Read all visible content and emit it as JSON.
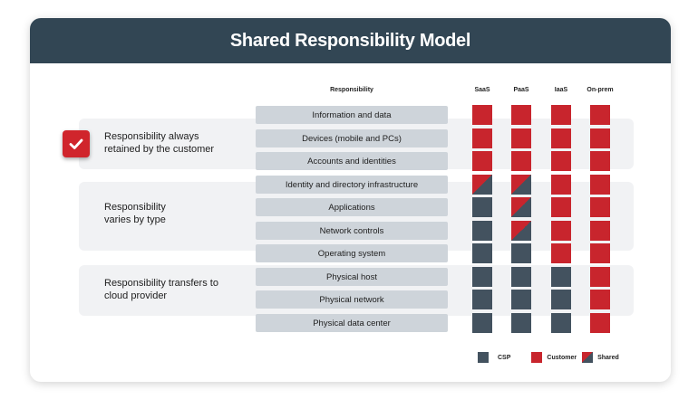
{
  "title": "Shared Responsibility Model",
  "colors": {
    "csp": "#43525f",
    "customer": "#c8252d",
    "header": "#324654"
  },
  "headers": {
    "responsibility": "Responsibility",
    "columns": [
      "SaaS",
      "PaaS",
      "IaaS",
      "On-prem"
    ]
  },
  "groups": [
    {
      "label": "Responsibility always retained by the customer",
      "icon": "check-icon"
    },
    {
      "label": "Responsibility varies by type"
    },
    {
      "label": "Responsibility transfers to cloud provider"
    }
  ],
  "rows": [
    {
      "label": "Information and data",
      "cells": [
        "customer",
        "customer",
        "customer",
        "customer"
      ]
    },
    {
      "label": "Devices (mobile and PCs)",
      "cells": [
        "customer",
        "customer",
        "customer",
        "customer"
      ]
    },
    {
      "label": "Accounts and identities",
      "cells": [
        "customer",
        "customer",
        "customer",
        "customer"
      ]
    },
    {
      "label": "Identity and directory infrastructure",
      "cells": [
        "shared",
        "shared",
        "customer",
        "customer"
      ]
    },
    {
      "label": "Applications",
      "cells": [
        "csp",
        "shared",
        "customer",
        "customer"
      ]
    },
    {
      "label": "Network controls",
      "cells": [
        "csp",
        "shared",
        "customer",
        "customer"
      ]
    },
    {
      "label": "Operating system",
      "cells": [
        "csp",
        "csp",
        "customer",
        "customer"
      ]
    },
    {
      "label": "Physical host",
      "cells": [
        "csp",
        "csp",
        "csp",
        "customer"
      ]
    },
    {
      "label": "Physical network",
      "cells": [
        "csp",
        "csp",
        "csp",
        "customer"
      ]
    },
    {
      "label": "Physical data center",
      "cells": [
        "csp",
        "csp",
        "csp",
        "customer"
      ]
    }
  ],
  "legend": [
    {
      "key": "csp",
      "label": "CSP"
    },
    {
      "key": "customer",
      "label": "Customer"
    },
    {
      "key": "shared",
      "label": "Shared"
    }
  ]
}
